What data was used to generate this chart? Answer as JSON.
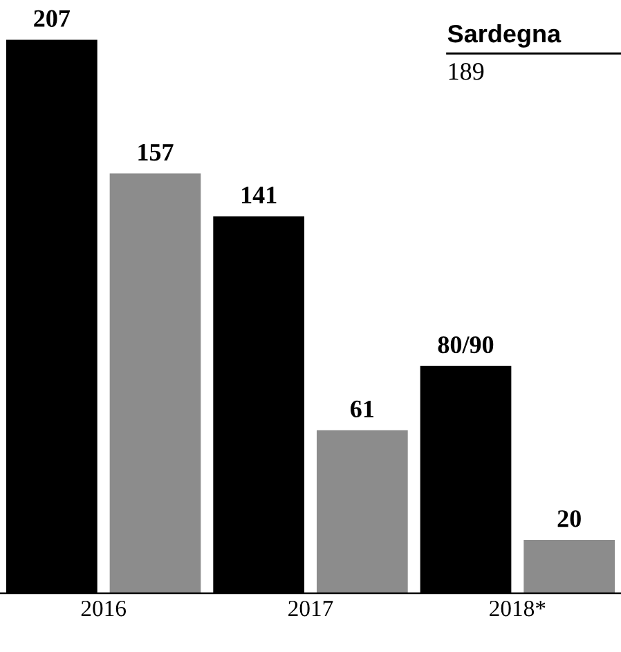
{
  "chart_data": {
    "type": "bar",
    "categories": [
      "2016",
      "2017",
      "2018*"
    ],
    "series": [
      {
        "color": "#000000",
        "values": [
          207,
          141,
          85
        ],
        "value_labels": [
          "207",
          "141",
          "80/90"
        ]
      },
      {
        "color": "#8c8c8c",
        "values": [
          157,
          61,
          20
        ],
        "value_labels": [
          "157",
          "61",
          "20"
        ]
      }
    ],
    "annotations": [
      "Sardegna",
      "189"
    ],
    "grid": false
  }
}
